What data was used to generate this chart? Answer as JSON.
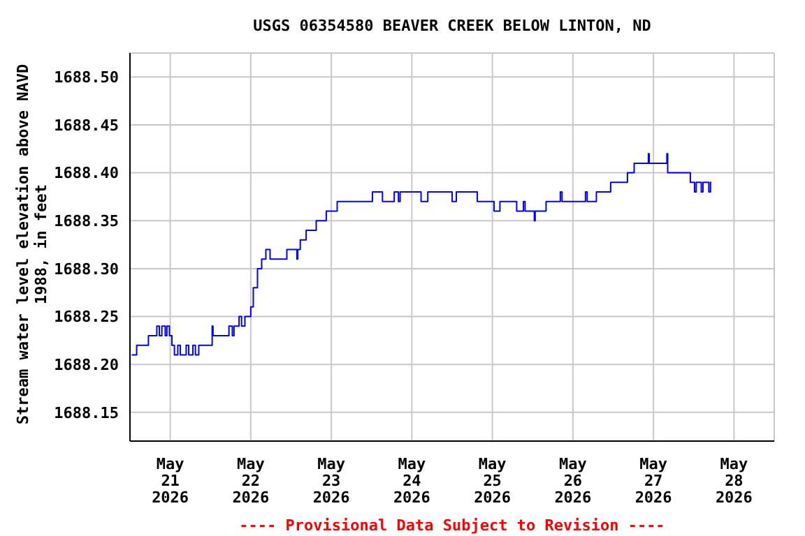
{
  "chart_data": {
    "type": "step",
    "title": "USGS 06354580 BEAVER CREEK BELOW LINTON, ND",
    "ylabel": "Stream water level elevation above NAVD 1988, in feet",
    "annotations": [
      "---- Provisional Data Subject to Revision ----"
    ],
    "xlim": [
      "2026-05-20T12:00",
      "2026-05-28T12:00"
    ],
    "xticks": [
      {
        "value": "2026-05-21",
        "label": "May 21 2026"
      },
      {
        "value": "2026-05-22",
        "label": "May 22 2026"
      },
      {
        "value": "2026-05-23",
        "label": "May 23 2026"
      },
      {
        "value": "2026-05-24",
        "label": "May 24 2026"
      },
      {
        "value": "2026-05-25",
        "label": "May 25 2026"
      },
      {
        "value": "2026-05-26",
        "label": "May 26 2026"
      },
      {
        "value": "2026-05-27",
        "label": "May 27 2026"
      },
      {
        "value": "2026-05-28",
        "label": "May 28 2026"
      }
    ],
    "ylim": [
      1688.12,
      1688.525
    ],
    "yticks": [
      {
        "value": 1688.15,
        "label": "1688.15"
      },
      {
        "value": 1688.2,
        "label": "1688.20"
      },
      {
        "value": 1688.25,
        "label": "1688.25"
      },
      {
        "value": 1688.3,
        "label": "1688.30"
      },
      {
        "value": 1688.35,
        "label": "1688.35"
      },
      {
        "value": 1688.4,
        "label": "1688.40"
      },
      {
        "value": 1688.45,
        "label": "1688.45"
      },
      {
        "value": 1688.5,
        "label": "1688.50"
      }
    ],
    "grid": true,
    "series": [
      {
        "color": "#0000ff",
        "x": [
          "2026-05-20T12:30",
          "2026-05-20T14:00",
          "2026-05-20T17:30",
          "2026-05-20T20:00",
          "2026-05-20T20:45",
          "2026-05-20T21:30",
          "2026-05-20T22:30",
          "2026-05-20T23:00",
          "2026-05-20T23:45",
          "2026-05-21T00:30",
          "2026-05-21T01:15",
          "2026-05-21T02:15",
          "2026-05-21T03:00",
          "2026-05-21T04:45",
          "2026-05-21T05:30",
          "2026-05-21T06:45",
          "2026-05-21T07:30",
          "2026-05-21T08:30",
          "2026-05-21T12:30",
          "2026-05-21T12:45",
          "2026-05-21T17:30",
          "2026-05-21T18:30",
          "2026-05-21T19:00",
          "2026-05-21T20:30",
          "2026-05-21T21:15",
          "2026-05-21T22:15",
          "2026-05-22T00:00",
          "2026-05-22T00:45",
          "2026-05-22T02:00",
          "2026-05-22T03:15",
          "2026-05-22T04:30",
          "2026-05-22T05:45",
          "2026-05-22T10:45",
          "2026-05-22T13:45",
          "2026-05-22T14:00",
          "2026-05-22T14:45",
          "2026-05-22T16:30",
          "2026-05-22T19:30",
          "2026-05-22T22:30",
          "2026-05-23T01:45",
          "2026-05-23T12:15",
          "2026-05-23T15:15",
          "2026-05-23T18:45",
          "2026-05-23T20:00",
          "2026-05-23T20:30",
          "2026-05-24T02:45",
          "2026-05-24T04:45",
          "2026-05-24T12:00",
          "2026-05-24T13:15",
          "2026-05-24T19:30",
          "2026-05-25T00:30",
          "2026-05-25T02:15",
          "2026-05-25T07:15",
          "2026-05-25T09:15",
          "2026-05-25T09:45",
          "2026-05-25T12:30",
          "2026-05-25T12:45",
          "2026-05-25T16:00",
          "2026-05-25T20:15",
          "2026-05-25T20:45",
          "2026-05-26T03:45",
          "2026-05-26T04:15",
          "2026-05-26T07:00",
          "2026-05-26T11:15",
          "2026-05-26T16:15",
          "2026-05-26T18:15",
          "2026-05-26T22:30",
          "2026-05-26T22:45",
          "2026-05-27T04:00",
          "2026-05-27T04:15",
          "2026-05-27T11:00",
          "2026-05-27T12:15",
          "2026-05-27T12:45",
          "2026-05-27T14:15",
          "2026-05-27T14:45",
          "2026-05-27T16:30",
          "2026-05-27T17:00",
          "2026-05-27T17:15"
        ],
        "values": [
          1688.21,
          1688.22,
          1688.23,
          1688.24,
          1688.23,
          1688.24,
          1688.23,
          1688.24,
          1688.23,
          1688.22,
          1688.21,
          1688.22,
          1688.21,
          1688.22,
          1688.21,
          1688.22,
          1688.21,
          1688.22,
          1688.24,
          1688.23,
          1688.24,
          1688.23,
          1688.24,
          1688.25,
          1688.24,
          1688.25,
          1688.26,
          1688.28,
          1688.3,
          1688.31,
          1688.32,
          1688.31,
          1688.32,
          1688.31,
          1688.32,
          1688.33,
          1688.34,
          1688.35,
          1688.36,
          1688.37,
          1688.38,
          1688.37,
          1688.38,
          1688.37,
          1688.38,
          1688.37,
          1688.38,
          1688.37,
          1688.38,
          1688.37,
          1688.36,
          1688.37,
          1688.36,
          1688.37,
          1688.36,
          1688.35,
          1688.36,
          1688.37,
          1688.38,
          1688.37,
          1688.38,
          1688.37,
          1688.38,
          1688.39,
          1688.4,
          1688.41,
          1688.42,
          1688.41,
          1688.42,
          1688.4,
          1688.39,
          1688.38,
          1688.39,
          1688.38,
          1688.39,
          1688.38,
          1688.39,
          1688.39
        ]
      }
    ]
  }
}
